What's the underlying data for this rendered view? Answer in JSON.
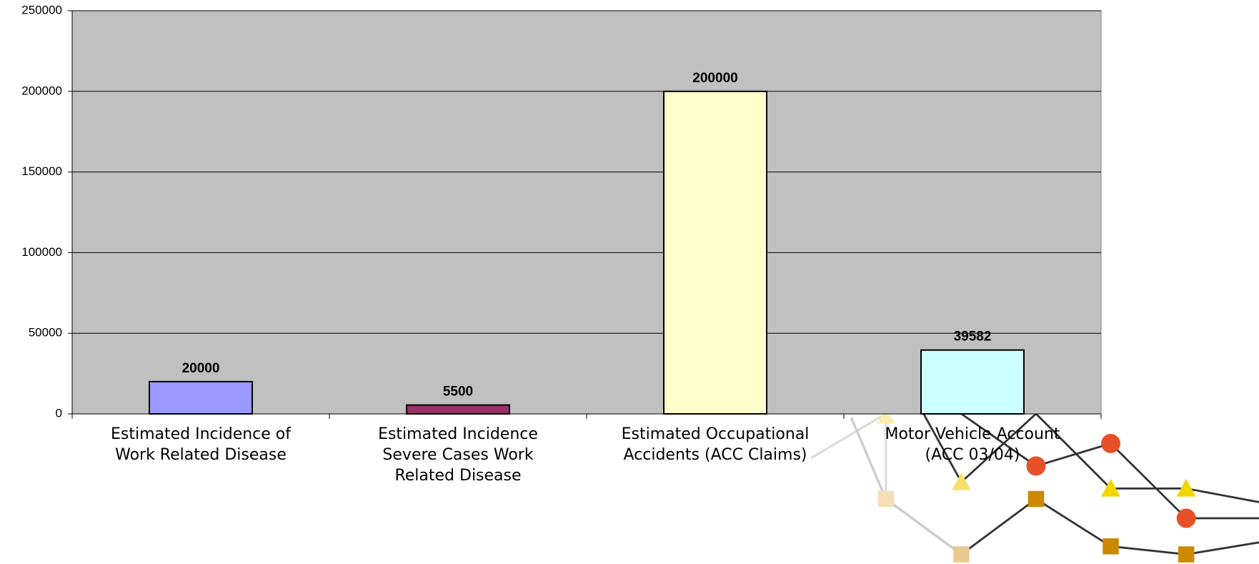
{
  "chart_data": {
    "type": "bar",
    "categories": [
      "Estimated Incidence of Work Related Disease",
      "Estimated Incidence Severe Cases Work Related Disease",
      "Estimated Occupational Accidents (ACC Claims)",
      "Motor Vehicle Account (ACC 03/04)"
    ],
    "values": [
      20000,
      5500,
      200000,
      39582
    ],
    "colors": [
      "#9999ff",
      "#993366",
      "#ffffcc",
      "#ccffff"
    ],
    "ylim": [
      0,
      250000
    ],
    "yticks": [
      0,
      50000,
      100000,
      150000,
      200000,
      250000
    ],
    "grid": true
  }
}
